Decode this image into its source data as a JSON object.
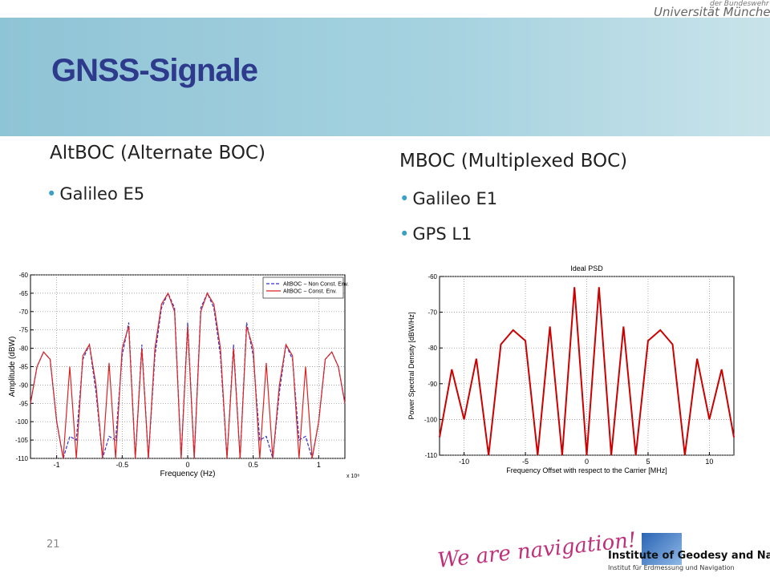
{
  "header": {
    "title": "GNSS-Signale",
    "logo_top": "der Bundeswehr",
    "logo": "Universität München"
  },
  "left": {
    "heading": "AltBOC (Alternate BOC)",
    "bullets": [
      "Galileo E5"
    ]
  },
  "right": {
    "heading": "MBOC (Multiplexed BOC)",
    "bullets": [
      "Galileo E1",
      "GPS L1"
    ]
  },
  "footer": {
    "slide_number": "21",
    "slogan": "We are navigation!",
    "institute": "Institute of Geodesy and Navigation",
    "institute_sub": "Institut für Erdmessung und Navigation"
  },
  "chart_data": [
    {
      "type": "line",
      "x_label": "Frequency (Hz)",
      "y_label": "Amplitude (dBW)",
      "x_multiplier": "x 10⁸",
      "x": [
        -1.2,
        -1.15,
        -1.1,
        -1.05,
        -1,
        -0.95,
        -0.9,
        -0.85,
        -0.8,
        -0.75,
        -0.7,
        -0.65,
        -0.6,
        -0.55,
        -0.5,
        -0.45,
        -0.4,
        -0.35,
        -0.3,
        -0.25,
        -0.2,
        -0.15,
        -0.1,
        -0.05,
        0,
        0.05,
        0.1,
        0.15,
        0.2,
        0.25,
        0.3,
        0.35,
        0.4,
        0.45,
        0.5,
        0.55,
        0.6,
        0.65,
        0.7,
        0.75,
        0.8,
        0.85,
        0.9,
        0.95,
        1,
        1.05,
        1.1,
        1.15,
        1.2
      ],
      "series": [
        {
          "name": "AltBOC − Non Const. Env.",
          "color": "#3333cc",
          "dashed": true,
          "values": [
            -95,
            -85,
            -81,
            -83,
            -100,
            -110,
            -104,
            -105,
            -83,
            -79,
            -92,
            -110,
            -104,
            -105,
            -82,
            -73,
            -110,
            -79,
            -110,
            -82,
            -69,
            -65,
            -69,
            -110,
            -73,
            -110,
            -69,
            -65,
            -69,
            -82,
            -110,
            -79,
            -110,
            -73,
            -82,
            -105,
            -104,
            -110,
            -92,
            -79,
            -83,
            -105,
            -104,
            -110,
            -100,
            -83,
            -81,
            -85,
            -95
          ]
        },
        {
          "name": "AltBOC − Const. Env.",
          "color": "#dd2222",
          "dashed": false,
          "values": [
            -95,
            -85,
            -81,
            -83,
            -100,
            -110,
            -85,
            -110,
            -82,
            -79,
            -90,
            -110,
            -84,
            -110,
            -80,
            -74,
            -110,
            -80,
            -110,
            -80,
            -68,
            -65,
            -70,
            -110,
            -74,
            -110,
            -70,
            -65,
            -68,
            -80,
            -110,
            -80,
            -110,
            -74,
            -80,
            -110,
            -84,
            -110,
            -90,
            -79,
            -82,
            -110,
            -85,
            -110,
            -100,
            -83,
            -81,
            -85,
            -95
          ]
        }
      ],
      "xlim": [
        -1.2,
        1.2
      ],
      "xticks": [
        -1,
        -0.5,
        0,
        0.5,
        1
      ],
      "ylim": [
        -110,
        -60
      ],
      "yticks": [
        -110,
        -105,
        -100,
        -95,
        -90,
        -85,
        -80,
        -75,
        -70,
        -65,
        -60
      ],
      "grid": true,
      "legend": "upper right"
    },
    {
      "type": "line",
      "title": "Ideal PSD",
      "x_label": "Frequency Offset with respect to the Carrier [MHz]",
      "y_label": "Power Spectral Density [dBW/Hz]",
      "x": [
        -12,
        -11,
        -10,
        -9,
        -8,
        -7,
        -6,
        -5,
        -4,
        -3,
        -2,
        -1,
        0,
        1,
        2,
        3,
        4,
        5,
        6,
        7,
        8,
        9,
        10,
        11,
        12
      ],
      "series": [
        {
          "color": "#cc0000",
          "dashed": false,
          "values": [
            -105,
            -86,
            -100,
            -83,
            -110,
            -79,
            -75,
            -78,
            -110,
            -74,
            -110,
            -63,
            -110,
            -63,
            -110,
            -74,
            -110,
            -78,
            -75,
            -79,
            -110,
            -83,
            -100,
            -86,
            -105
          ]
        }
      ],
      "xlim": [
        -12,
        12
      ],
      "xticks": [
        -10,
        -5,
        0,
        5,
        10
      ],
      "ylim": [
        -110,
        -60
      ],
      "yticks": [
        -110,
        -100,
        -90,
        -80,
        -70,
        -60
      ],
      "grid": true
    }
  ]
}
